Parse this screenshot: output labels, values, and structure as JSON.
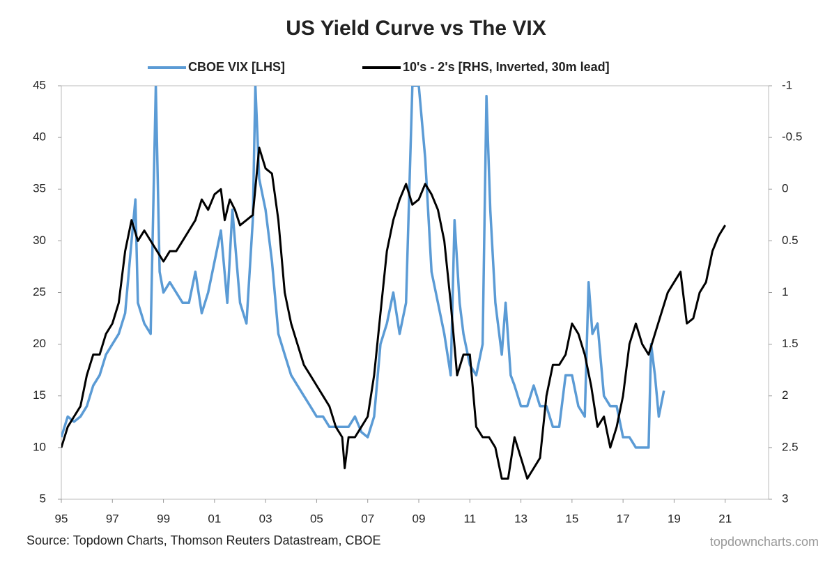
{
  "chart_data": {
    "type": "line",
    "title": "US Yield Curve vs The VIX",
    "source": "Source: Topdown Charts, Thomson Reuters Datastream, CBOE",
    "watermark": "topdowncharts.com",
    "xlim": [
      1995,
      2022.7
    ],
    "xticks": [
      {
        "value": 1995,
        "label": "95"
      },
      {
        "value": 1997,
        "label": "97"
      },
      {
        "value": 1999,
        "label": "99"
      },
      {
        "value": 2001,
        "label": "01"
      },
      {
        "value": 2003,
        "label": "03"
      },
      {
        "value": 2005,
        "label": "05"
      },
      {
        "value": 2007,
        "label": "07"
      },
      {
        "value": 2009,
        "label": "09"
      },
      {
        "value": 2011,
        "label": "11"
      },
      {
        "value": 2013,
        "label": "13"
      },
      {
        "value": 2015,
        "label": "15"
      },
      {
        "value": 2017,
        "label": "17"
      },
      {
        "value": 2019,
        "label": "19"
      },
      {
        "value": 2021,
        "label": "21"
      }
    ],
    "ylim": [
      5,
      45
    ],
    "yticks": [
      5,
      10,
      15,
      20,
      25,
      30,
      35,
      40,
      45
    ],
    "y2lim": [
      3,
      -1
    ],
    "y2ticks": [
      3,
      2.5,
      2,
      1.5,
      1,
      0.5,
      0,
      -0.5,
      -1
    ],
    "legend": "top",
    "series": [
      {
        "name": "CBOE VIX [LHS]",
        "color": "#5b9bd5",
        "x": [
          1995.0,
          1995.25,
          1995.5,
          1995.75,
          1996.0,
          1996.25,
          1996.5,
          1996.75,
          1997.0,
          1997.25,
          1997.5,
          1997.75,
          1997.9,
          1998.0,
          1998.25,
          1998.5,
          1998.7,
          1998.85,
          1999.0,
          1999.25,
          1999.5,
          1999.75,
          2000.0,
          2000.25,
          2000.5,
          2000.75,
          2001.0,
          2001.25,
          2001.5,
          2001.7,
          2001.9,
          2002.0,
          2002.25,
          2002.5,
          2002.6,
          2002.75,
          2003.0,
          2003.25,
          2003.5,
          2003.75,
          2004.0,
          2004.25,
          2004.5,
          2004.75,
          2005.0,
          2005.25,
          2005.5,
          2005.75,
          2006.0,
          2006.25,
          2006.5,
          2006.75,
          2007.0,
          2007.25,
          2007.5,
          2007.75,
          2008.0,
          2008.25,
          2008.5,
          2008.75,
          2009.0,
          2009.25,
          2009.5,
          2009.75,
          2010.0,
          2010.25,
          2010.4,
          2010.6,
          2010.75,
          2011.0,
          2011.25,
          2011.5,
          2011.65,
          2011.8,
          2012.0,
          2012.25,
          2012.4,
          2012.6,
          2012.75,
          2013.0,
          2013.25,
          2013.5,
          2013.75,
          2014.0,
          2014.25,
          2014.5,
          2014.75,
          2015.0,
          2015.25,
          2015.5,
          2015.65,
          2015.8,
          2016.0,
          2016.25,
          2016.5,
          2016.75,
          2017.0,
          2017.25,
          2017.5,
          2017.75,
          2018.0,
          2018.1,
          2018.25,
          2018.4,
          2018.6
        ],
        "values": [
          11,
          13,
          12.5,
          13,
          14,
          16,
          17,
          19,
          20,
          21,
          23,
          30,
          34,
          24,
          22,
          21,
          45,
          27,
          25,
          26,
          25,
          24,
          24,
          27,
          23,
          25,
          28,
          31,
          24,
          33,
          27,
          24,
          22,
          32,
          45,
          36,
          33,
          28,
          21,
          19,
          17,
          16,
          15,
          14,
          13,
          13,
          12,
          12,
          12,
          12,
          13,
          11.5,
          11,
          13,
          20,
          22,
          25,
          21,
          24,
          45,
          45,
          38,
          27,
          24,
          21,
          17,
          32,
          24,
          21,
          18,
          17,
          20,
          44,
          33,
          24,
          19,
          24,
          17,
          16,
          14,
          14,
          16,
          14,
          14,
          12,
          12,
          17,
          17,
          14,
          13,
          26,
          21,
          22,
          15,
          14,
          14,
          11,
          11,
          10,
          10,
          10,
          20,
          17,
          13,
          15.5
        ]
      },
      {
        "name": "10's - 2's [RHS, Inverted, 30m lead]",
        "color": "#000000",
        "axis": "y2",
        "x": [
          1995.0,
          1995.25,
          1995.5,
          1995.75,
          1996.0,
          1996.25,
          1996.5,
          1996.75,
          1997.0,
          1997.25,
          1997.5,
          1997.75,
          1998.0,
          1998.25,
          1998.5,
          1998.75,
          1999.0,
          1999.25,
          1999.5,
          1999.75,
          2000.0,
          2000.25,
          2000.5,
          2000.75,
          2001.0,
          2001.25,
          2001.4,
          2001.6,
          2001.8,
          2002.0,
          2002.25,
          2002.5,
          2002.75,
          2003.0,
          2003.25,
          2003.5,
          2003.75,
          2004.0,
          2004.25,
          2004.5,
          2004.75,
          2005.0,
          2005.25,
          2005.5,
          2005.75,
          2006.0,
          2006.1,
          2006.25,
          2006.5,
          2006.75,
          2007.0,
          2007.25,
          2007.5,
          2007.75,
          2008.0,
          2008.25,
          2008.5,
          2008.75,
          2009.0,
          2009.25,
          2009.5,
          2009.75,
          2010.0,
          2010.25,
          2010.5,
          2010.75,
          2011.0,
          2011.25,
          2011.5,
          2011.75,
          2012.0,
          2012.25,
          2012.5,
          2012.75,
          2013.0,
          2013.25,
          2013.5,
          2013.75,
          2014.0,
          2014.25,
          2014.5,
          2014.75,
          2015.0,
          2015.25,
          2015.5,
          2015.75,
          2016.0,
          2016.25,
          2016.5,
          2016.75,
          2017.0,
          2017.25,
          2017.5,
          2017.75,
          2018.0,
          2018.25,
          2018.5,
          2018.75,
          2019.0,
          2019.25,
          2019.5,
          2019.75,
          2020.0,
          2020.25,
          2020.5,
          2020.75,
          2021.0
        ],
        "values": [
          2.5,
          2.3,
          2.2,
          2.1,
          1.8,
          1.6,
          1.6,
          1.4,
          1.3,
          1.1,
          0.6,
          0.3,
          0.5,
          0.4,
          0.5,
          0.6,
          0.7,
          0.6,
          0.6,
          0.5,
          0.4,
          0.3,
          0.1,
          0.2,
          0.05,
          0.0,
          0.3,
          0.1,
          0.2,
          0.35,
          0.3,
          0.25,
          -0.4,
          -0.2,
          -0.15,
          0.3,
          1.0,
          1.3,
          1.5,
          1.7,
          1.8,
          1.9,
          2.0,
          2.1,
          2.3,
          2.4,
          2.7,
          2.4,
          2.4,
          2.3,
          2.2,
          1.8,
          1.2,
          0.6,
          0.3,
          0.1,
          -0.05,
          0.15,
          0.1,
          -0.05,
          0.05,
          0.2,
          0.5,
          1.1,
          1.8,
          1.6,
          1.6,
          2.3,
          2.4,
          2.4,
          2.5,
          2.8,
          2.8,
          2.4,
          2.6,
          2.8,
          2.7,
          2.6,
          2.0,
          1.7,
          1.7,
          1.6,
          1.3,
          1.4,
          1.6,
          1.9,
          2.3,
          2.2,
          2.5,
          2.3,
          2.0,
          1.5,
          1.3,
          1.5,
          1.6,
          1.4,
          1.2,
          1.0,
          0.9,
          0.8,
          1.3,
          1.25,
          1.0,
          0.9,
          0.6,
          0.45,
          0.35
        ]
      }
    ]
  }
}
